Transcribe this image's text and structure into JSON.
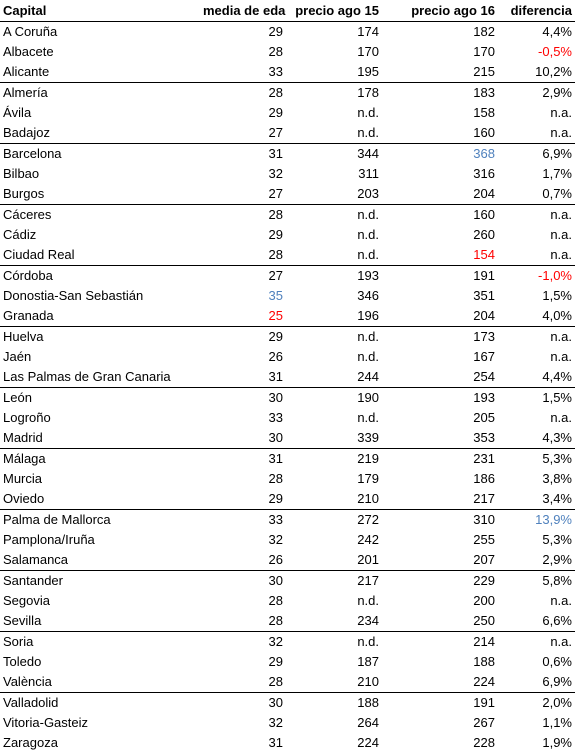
{
  "table": {
    "headers": [
      "Capital",
      "media de edad",
      "precio ago 15",
      "precio ago 16",
      "diferencia"
    ],
    "rows": [
      {
        "cells": [
          "A Coruña",
          "29",
          "174",
          "182",
          "4,4%"
        ],
        "group_start": false
      },
      {
        "cells": [
          "Albacete",
          "28",
          "170",
          "170",
          "-0,5%"
        ],
        "group_start": false,
        "highlight": {
          "4": "red"
        }
      },
      {
        "cells": [
          "Alicante",
          "33",
          "195",
          "215",
          "10,2%"
        ],
        "group_start": false
      },
      {
        "cells": [
          "Almería",
          "28",
          "178",
          "183",
          "2,9%"
        ],
        "group_start": true
      },
      {
        "cells": [
          "Ávila",
          "29",
          "n.d.",
          "158",
          "n.a."
        ],
        "group_start": false
      },
      {
        "cells": [
          "Badajoz",
          "27",
          "n.d.",
          "160",
          "n.a."
        ],
        "group_start": false
      },
      {
        "cells": [
          "Barcelona",
          "31",
          "344",
          "368",
          "6,9%"
        ],
        "group_start": true,
        "highlight": {
          "3": "blue"
        }
      },
      {
        "cells": [
          "Bilbao",
          "32",
          "311",
          "316",
          "1,7%"
        ],
        "group_start": false
      },
      {
        "cells": [
          "Burgos",
          "27",
          "203",
          "204",
          "0,7%"
        ],
        "group_start": false
      },
      {
        "cells": [
          "Cáceres",
          "28",
          "n.d.",
          "160",
          "n.a."
        ],
        "group_start": true
      },
      {
        "cells": [
          "Cádiz",
          "29",
          "n.d.",
          "260",
          "n.a."
        ],
        "group_start": false
      },
      {
        "cells": [
          "Ciudad Real",
          "28",
          "n.d.",
          "154",
          "n.a."
        ],
        "group_start": false,
        "highlight": {
          "3": "red"
        }
      },
      {
        "cells": [
          "Córdoba",
          "27",
          "193",
          "191",
          "-1,0%"
        ],
        "group_start": true,
        "highlight": {
          "4": "red"
        }
      },
      {
        "cells": [
          "Donostia-San Sebastián",
          "35",
          "346",
          "351",
          "1,5%"
        ],
        "group_start": false,
        "highlight": {
          "1": "blue"
        }
      },
      {
        "cells": [
          "Granada",
          "25",
          "196",
          "204",
          "4,0%"
        ],
        "group_start": false,
        "highlight": {
          "1": "red"
        }
      },
      {
        "cells": [
          "Huelva",
          "29",
          "n.d.",
          "173",
          "n.a."
        ],
        "group_start": true
      },
      {
        "cells": [
          "Jaén",
          "26",
          "n.d.",
          "167",
          "n.a."
        ],
        "group_start": false
      },
      {
        "cells": [
          "Las Palmas de Gran Canaria",
          "31",
          "244",
          "254",
          "4,4%"
        ],
        "group_start": false
      },
      {
        "cells": [
          "León",
          "30",
          "190",
          "193",
          "1,5%"
        ],
        "group_start": true
      },
      {
        "cells": [
          "Logroño",
          "33",
          "n.d.",
          "205",
          "n.a."
        ],
        "group_start": false
      },
      {
        "cells": [
          "Madrid",
          "30",
          "339",
          "353",
          "4,3%"
        ],
        "group_start": false
      },
      {
        "cells": [
          "Málaga",
          "31",
          "219",
          "231",
          "5,3%"
        ],
        "group_start": true
      },
      {
        "cells": [
          "Murcia",
          "28",
          "179",
          "186",
          "3,8%"
        ],
        "group_start": false
      },
      {
        "cells": [
          "Oviedo",
          "29",
          "210",
          "217",
          "3,4%"
        ],
        "group_start": false
      },
      {
        "cells": [
          "Palma de Mallorca",
          "33",
          "272",
          "310",
          "13,9%"
        ],
        "group_start": true,
        "highlight": {
          "4": "blue"
        }
      },
      {
        "cells": [
          "Pamplona/Iruña",
          "32",
          "242",
          "255",
          "5,3%"
        ],
        "group_start": false
      },
      {
        "cells": [
          "Salamanca",
          "26",
          "201",
          "207",
          "2,9%"
        ],
        "group_start": false
      },
      {
        "cells": [
          "Santander",
          "30",
          "217",
          "229",
          "5,8%"
        ],
        "group_start": true
      },
      {
        "cells": [
          "Segovia",
          "28",
          "n.d.",
          "200",
          "n.a."
        ],
        "group_start": false
      },
      {
        "cells": [
          "Sevilla",
          "28",
          "234",
          "250",
          "6,6%"
        ],
        "group_start": false
      },
      {
        "cells": [
          "Soria",
          "32",
          "n.d.",
          "214",
          "n.a."
        ],
        "group_start": true
      },
      {
        "cells": [
          "Toledo",
          "29",
          "187",
          "188",
          "0,6%"
        ],
        "group_start": false
      },
      {
        "cells": [
          "València",
          "28",
          "210",
          "224",
          "6,9%"
        ],
        "group_start": false
      },
      {
        "cells": [
          "Valladolid",
          "30",
          "188",
          "191",
          "2,0%"
        ],
        "group_start": true
      },
      {
        "cells": [
          "Vitoria-Gasteiz",
          "32",
          "264",
          "267",
          "1,1%"
        ],
        "group_start": false
      },
      {
        "cells": [
          "Zaragoza",
          "31",
          "224",
          "228",
          "1,9%"
        ],
        "group_start": false
      }
    ]
  },
  "colors": {
    "red": "#ff0000",
    "blue": "#4f81bd"
  }
}
